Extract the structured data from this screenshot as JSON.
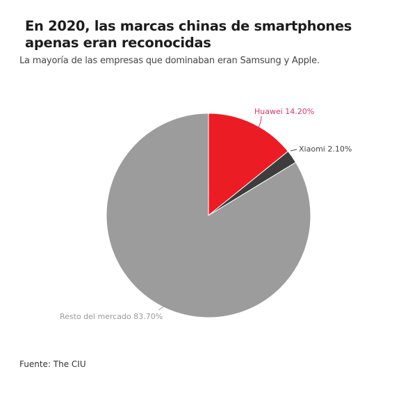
{
  "header": {
    "title": "En 2020, las marcas chinas de smartphones apenas eran reconocidas",
    "subtitle": "La mayoría de las empresas que dominaban eran Samsung y Apple."
  },
  "footer": {
    "source": "Fuente: The CIU"
  },
  "colors": {
    "huawei": "#ec1c24",
    "xiaomi": "#3d3d3d",
    "rest": "#9c9c9c",
    "huawei_label": "#d6336c",
    "label_gray": "#444444",
    "rest_label": "#999999"
  },
  "chart_data": {
    "type": "pie",
    "title": "En 2020, las marcas chinas de smartphones apenas eran reconocidas",
    "subtitle": "La mayoría de las empresas que dominaban eran Samsung y Apple.",
    "categories": [
      "Huawei",
      "Xiaomi",
      "Resto del mercado"
    ],
    "values": [
      14.2,
      2.1,
      83.7
    ],
    "labels": [
      "Huawei 14.20%",
      "Xiaomi 2.10%",
      "Resto del mercado 83.70%"
    ],
    "start_angle": "12 o'clock, clockwise",
    "legend": "none (direct labels)",
    "source": "Fuente: The CIU"
  }
}
